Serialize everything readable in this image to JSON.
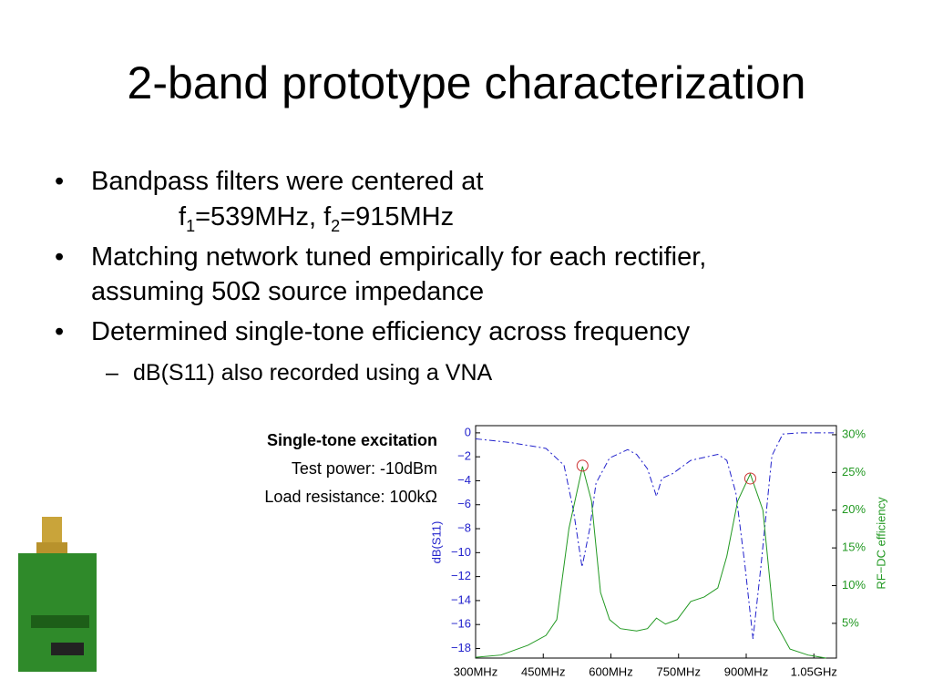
{
  "title": "2-band prototype characterization",
  "bullets": [
    {
      "lines": [
        "Bandpass filters were centered at"
      ],
      "sub_line": [
        "f",
        "1",
        "=539MHz, f",
        "2",
        "=915MHz"
      ]
    },
    {
      "lines": [
        "Matching network tuned empirically for each rectifier,",
        "assuming 50Ω source impedance"
      ]
    },
    {
      "lines": [
        "Determined single-tone efficiency across frequency"
      ],
      "sub_bullets": [
        "dB(S11) also recorded using a VNA"
      ]
    }
  ],
  "annotation": {
    "heading": "Single-tone excitation",
    "lines": [
      "Test power: -10dBm",
      "Load resistance: 100kΩ"
    ]
  },
  "chart_data": {
    "type": "line",
    "ylabel": "dB(S11)",
    "y2label": "RF−DC efficiency",
    "xlim": [
      300,
      1100
    ],
    "ylim": [
      -18.8,
      0.6
    ],
    "y2lim": [
      0.4,
      31.2
    ],
    "xticks": [
      {
        "value": 300,
        "label": "300MHz"
      },
      {
        "value": 450,
        "label": "450MHz"
      },
      {
        "value": 600,
        "label": "600MHz"
      },
      {
        "value": 750,
        "label": "750MHz"
      },
      {
        "value": 900,
        "label": "900MHz"
      },
      {
        "value": 1050,
        "label": "1.05GHz"
      }
    ],
    "yticks": [
      0,
      {
        "value": -2,
        "label": "−2"
      },
      {
        "value": -4,
        "label": "−4"
      },
      {
        "value": -6,
        "label": "−6"
      },
      {
        "value": -8,
        "label": "−8"
      },
      {
        "value": -10,
        "label": "−10"
      },
      {
        "value": -12,
        "label": "−12"
      },
      {
        "value": -14,
        "label": "−14"
      },
      {
        "value": -16,
        "label": "−16"
      },
      {
        "value": -18,
        "label": "−18"
      }
    ],
    "y2ticks": [
      {
        "value": 5,
        "label": "5%"
      },
      {
        "value": 10,
        "label": "10%"
      },
      {
        "value": 15,
        "label": "15%"
      },
      {
        "value": 20,
        "label": "20%"
      },
      {
        "value": 25,
        "label": "25%"
      },
      {
        "value": 30,
        "label": "30%"
      }
    ],
    "series": [
      {
        "color": "#2222cc",
        "dash": "dashdot",
        "x": [
          300,
          376,
          456,
          496,
          517,
          536,
          553,
          567,
          597,
          637,
          657,
          681,
          701,
          713,
          737,
          777,
          837,
          857,
          877,
          897,
          915,
          933,
          957,
          981,
          1017,
          1094
        ],
        "values": [
          -0.5,
          -0.8,
          -1.3,
          -2.7,
          -6.5,
          -11.2,
          -8,
          -4.2,
          -2.1,
          -1.4,
          -1.8,
          -3,
          -5.3,
          -3.8,
          -3.4,
          -2.3,
          -1.8,
          -2.3,
          -5,
          -11,
          -17.2,
          -11,
          -1.9,
          -0.1,
          0,
          0
        ]
      },
      {
        "color": "#229922",
        "axis": "y2",
        "x": [
          300,
          356,
          416,
          456,
          480,
          507,
          537,
          557,
          577,
          597,
          621,
          657,
          681,
          701,
          721,
          747,
          777,
          807,
          837,
          857,
          881,
          909,
          937,
          961,
          997,
          1037,
          1077
        ],
        "values": [
          0.5,
          0.8,
          2.1,
          3.4,
          5.5,
          17.6,
          25.8,
          21.2,
          9.1,
          5.5,
          4.3,
          4,
          4.3,
          5.7,
          4.9,
          5.5,
          7.9,
          8.5,
          9.7,
          13.9,
          21.2,
          24.8,
          20,
          5.5,
          1.6,
          0.8,
          0.4
        ]
      }
    ],
    "markers": {
      "color": "#cc3333",
      "x": [
        537,
        909
      ],
      "values": [
        25.9,
        24.2
      ]
    }
  }
}
